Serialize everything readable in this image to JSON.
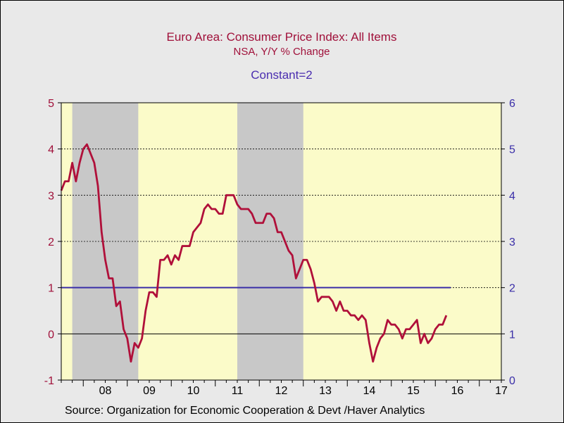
{
  "chart_data": {
    "type": "line",
    "title": "Euro Area: Consumer Price Index: All Items",
    "subtitle": "NSA, Y/Y % Change",
    "constant_label": "Constant=2",
    "source": "Source:  Organization for Economic Cooperation & Devt /Haver Analytics",
    "x_range": [
      2007.5,
      2017.5
    ],
    "ylim_left": [
      -1,
      5
    ],
    "ylim_right": [
      0,
      6
    ],
    "left_ticks": [
      "-1",
      "0",
      "1",
      "2",
      "3",
      "4",
      "5"
    ],
    "right_ticks": [
      "0",
      "1",
      "2",
      "3",
      "4",
      "5",
      "6"
    ],
    "x_tick_labels": [
      "08",
      "09",
      "10",
      "11",
      "12",
      "13",
      "14",
      "15",
      "16",
      "17"
    ],
    "x_tick_years": [
      2008,
      2009,
      2010,
      2011,
      2012,
      2013,
      2014,
      2015,
      2016,
      2017
    ],
    "gridlines_left": [
      1,
      2,
      3,
      4
    ],
    "recessions": [
      {
        "start": 2007.75,
        "end": 2009.25
      },
      {
        "start": 2011.5,
        "end": 2013.0
      }
    ],
    "colors": {
      "plot_background": "#fbfbc9",
      "recession": "#c8c8c8",
      "series_main": "#b0103a",
      "series_constant": "#3a2ea8",
      "title": "#a0103a",
      "constant_label": "#4a2db0",
      "left_axis": "#a0103a",
      "right_axis": "#3a2ea8"
    },
    "series": [
      {
        "name": "Euro Area: Consumer Price Index: All Items",
        "axis": "left",
        "start": 2007.5,
        "step_months": 1,
        "values": [
          3.1,
          3.3,
          3.3,
          3.7,
          3.3,
          3.7,
          4.0,
          4.1,
          3.9,
          3.7,
          3.2,
          2.2,
          1.6,
          1.2,
          1.2,
          0.6,
          0.7,
          0.1,
          -0.1,
          -0.6,
          -0.2,
          -0.3,
          -0.1,
          0.5,
          0.9,
          0.9,
          0.8,
          1.6,
          1.6,
          1.7,
          1.5,
          1.7,
          1.6,
          1.9,
          1.9,
          1.9,
          2.2,
          2.3,
          2.4,
          2.7,
          2.8,
          2.7,
          2.7,
          2.6,
          2.6,
          3.0,
          3.0,
          3.0,
          2.8,
          2.7,
          2.7,
          2.7,
          2.6,
          2.4,
          2.4,
          2.4,
          2.6,
          2.6,
          2.5,
          2.2,
          2.2,
          2.0,
          1.8,
          1.7,
          1.2,
          1.4,
          1.6,
          1.6,
          1.4,
          1.1,
          0.7,
          0.8,
          0.8,
          0.8,
          0.7,
          0.5,
          0.7,
          0.5,
          0.5,
          0.4,
          0.4,
          0.3,
          0.4,
          0.3,
          -0.2,
          -0.6,
          -0.3,
          -0.1,
          0.0,
          0.3,
          0.2,
          0.2,
          0.1,
          -0.1,
          0.1,
          0.1,
          0.2,
          0.3,
          -0.2,
          0.0,
          -0.2,
          -0.1,
          0.1,
          0.2,
          0.2,
          0.4
        ]
      },
      {
        "name": "Constant=2",
        "axis": "right",
        "start": 2007.5,
        "end": 2016.35,
        "values": [
          2,
          2
        ]
      }
    ]
  }
}
